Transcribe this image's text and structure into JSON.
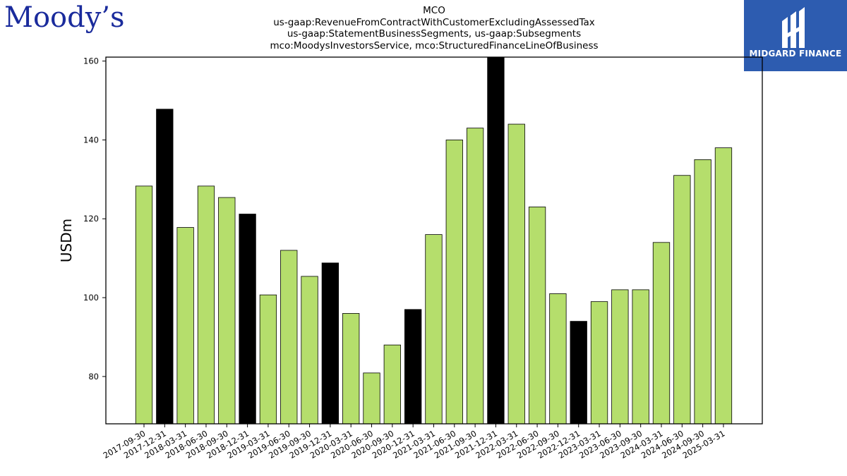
{
  "logos": {
    "left_text": "Moody’s",
    "right_text": "MIDGARD FINANCE",
    "right_bg": "#2d5cb0"
  },
  "header": {
    "lines": [
      "MCO",
      "us-gaap:RevenueFromContractWithCustomerExcludingAssessedTax",
      "us-gaap:StatementBusinessSegments, us-gaap:Subsegments",
      "mco:MoodysInvestorsService, mco:StructuredFinanceLineOfBusiness"
    ]
  },
  "chart_data": {
    "type": "bar",
    "ylabel": "USDm",
    "xlabel": "",
    "ylim": [
      68,
      161
    ],
    "yticks": [
      80,
      100,
      120,
      140,
      160
    ],
    "colors": {
      "quarter": "#b5de6c",
      "year_end": "#000000"
    },
    "categories": [
      "2017-09-30",
      "2017-12-31",
      "2018-03-31",
      "2018-06-30",
      "2018-09-30",
      "2018-12-31",
      "2019-03-31",
      "2019-06-30",
      "2019-09-30",
      "2019-12-31",
      "2020-03-31",
      "2020-06-30",
      "2020-09-30",
      "2020-12-31",
      "2021-03-31",
      "2021-06-30",
      "2021-09-30",
      "2021-12-31",
      "2022-03-31",
      "2022-06-30",
      "2022-09-30",
      "2022-12-31",
      "2023-03-31",
      "2023-06-30",
      "2023-09-30",
      "2024-03-31",
      "2024-06-30",
      "2024-09-30",
      "2025-03-31"
    ],
    "values": [
      128.3,
      147.8,
      117.8,
      128.3,
      125.4,
      121.2,
      100.7,
      112.0,
      105.4,
      108.8,
      96.0,
      80.9,
      88.0,
      97.0,
      116.0,
      140.0,
      143.0,
      161.0,
      144.0,
      123.0,
      101.0,
      94.0,
      99.0,
      102.0,
      102.0,
      114.0,
      131.0,
      135.0,
      138.0
    ]
  }
}
